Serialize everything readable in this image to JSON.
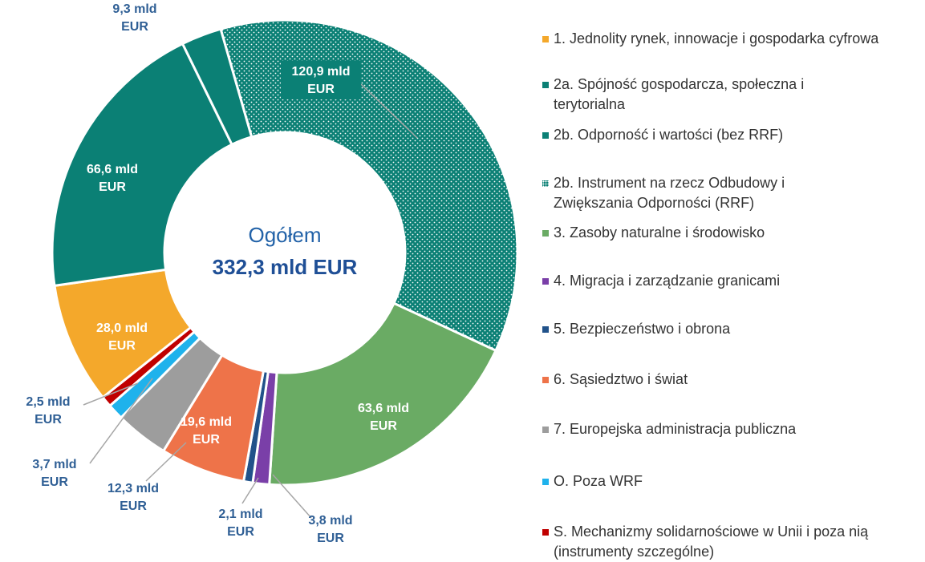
{
  "chart_data": {
    "type": "donut",
    "center_label": "Ogółem",
    "total_label": "332,3 mld EUR",
    "series": [
      {
        "name": "1. Jednolity rynek, innowacje i gospodarka cyfrowa",
        "color": "#f4a82b"
      },
      {
        "name": "2a. Spójność gospodarcza, społeczna i terytorialna",
        "color": "#0b8075"
      },
      {
        "name": "2b. Odporność i wartości (bez RRF)",
        "color": "#0b8075"
      },
      {
        "name": "2b. Instrument na rzecz Odbudowy i Zwiększania Odporności (RRF)",
        "color": "#0b8075",
        "pattern": "dotted"
      },
      {
        "name": "3. Zasoby naturalne i środowisko",
        "color": "#6aab64"
      },
      {
        "name": "4. Migracja i zarządzanie granicami",
        "color": "#7a3fa8"
      },
      {
        "name": "5. Bezpieczeństwo i obrona",
        "color": "#21528a"
      },
      {
        "name": "6. Sąsiedztwo i świat",
        "color": "#ee7349"
      },
      {
        "name": "7. Europejska administracja publiczna",
        "color": "#9d9d9d"
      },
      {
        "name": "O. Poza WRF",
        "color": "#1fb2ec"
      },
      {
        "name": "S. Mechanizmy solidarnościowe w Unii i poza nią (instrumenty szczególne)",
        "color": "#c00000"
      }
    ],
    "values": [
      28.0,
      66.6,
      9.3,
      120.9,
      63.6,
      3.8,
      2.1,
      19.6,
      12.3,
      3.7,
      2.5
    ],
    "value_labels": [
      "28,0 mld EUR",
      "66,6 mld EUR",
      "9,3 mld EUR",
      "120,9 mld EUR",
      "63,6 mld EUR",
      "3,8 mld EUR",
      "2,1 mld EUR",
      "19,6 mld EUR",
      "12,3 mld EUR",
      "3,7 mld EUR",
      "2,5 mld EUR"
    ]
  }
}
